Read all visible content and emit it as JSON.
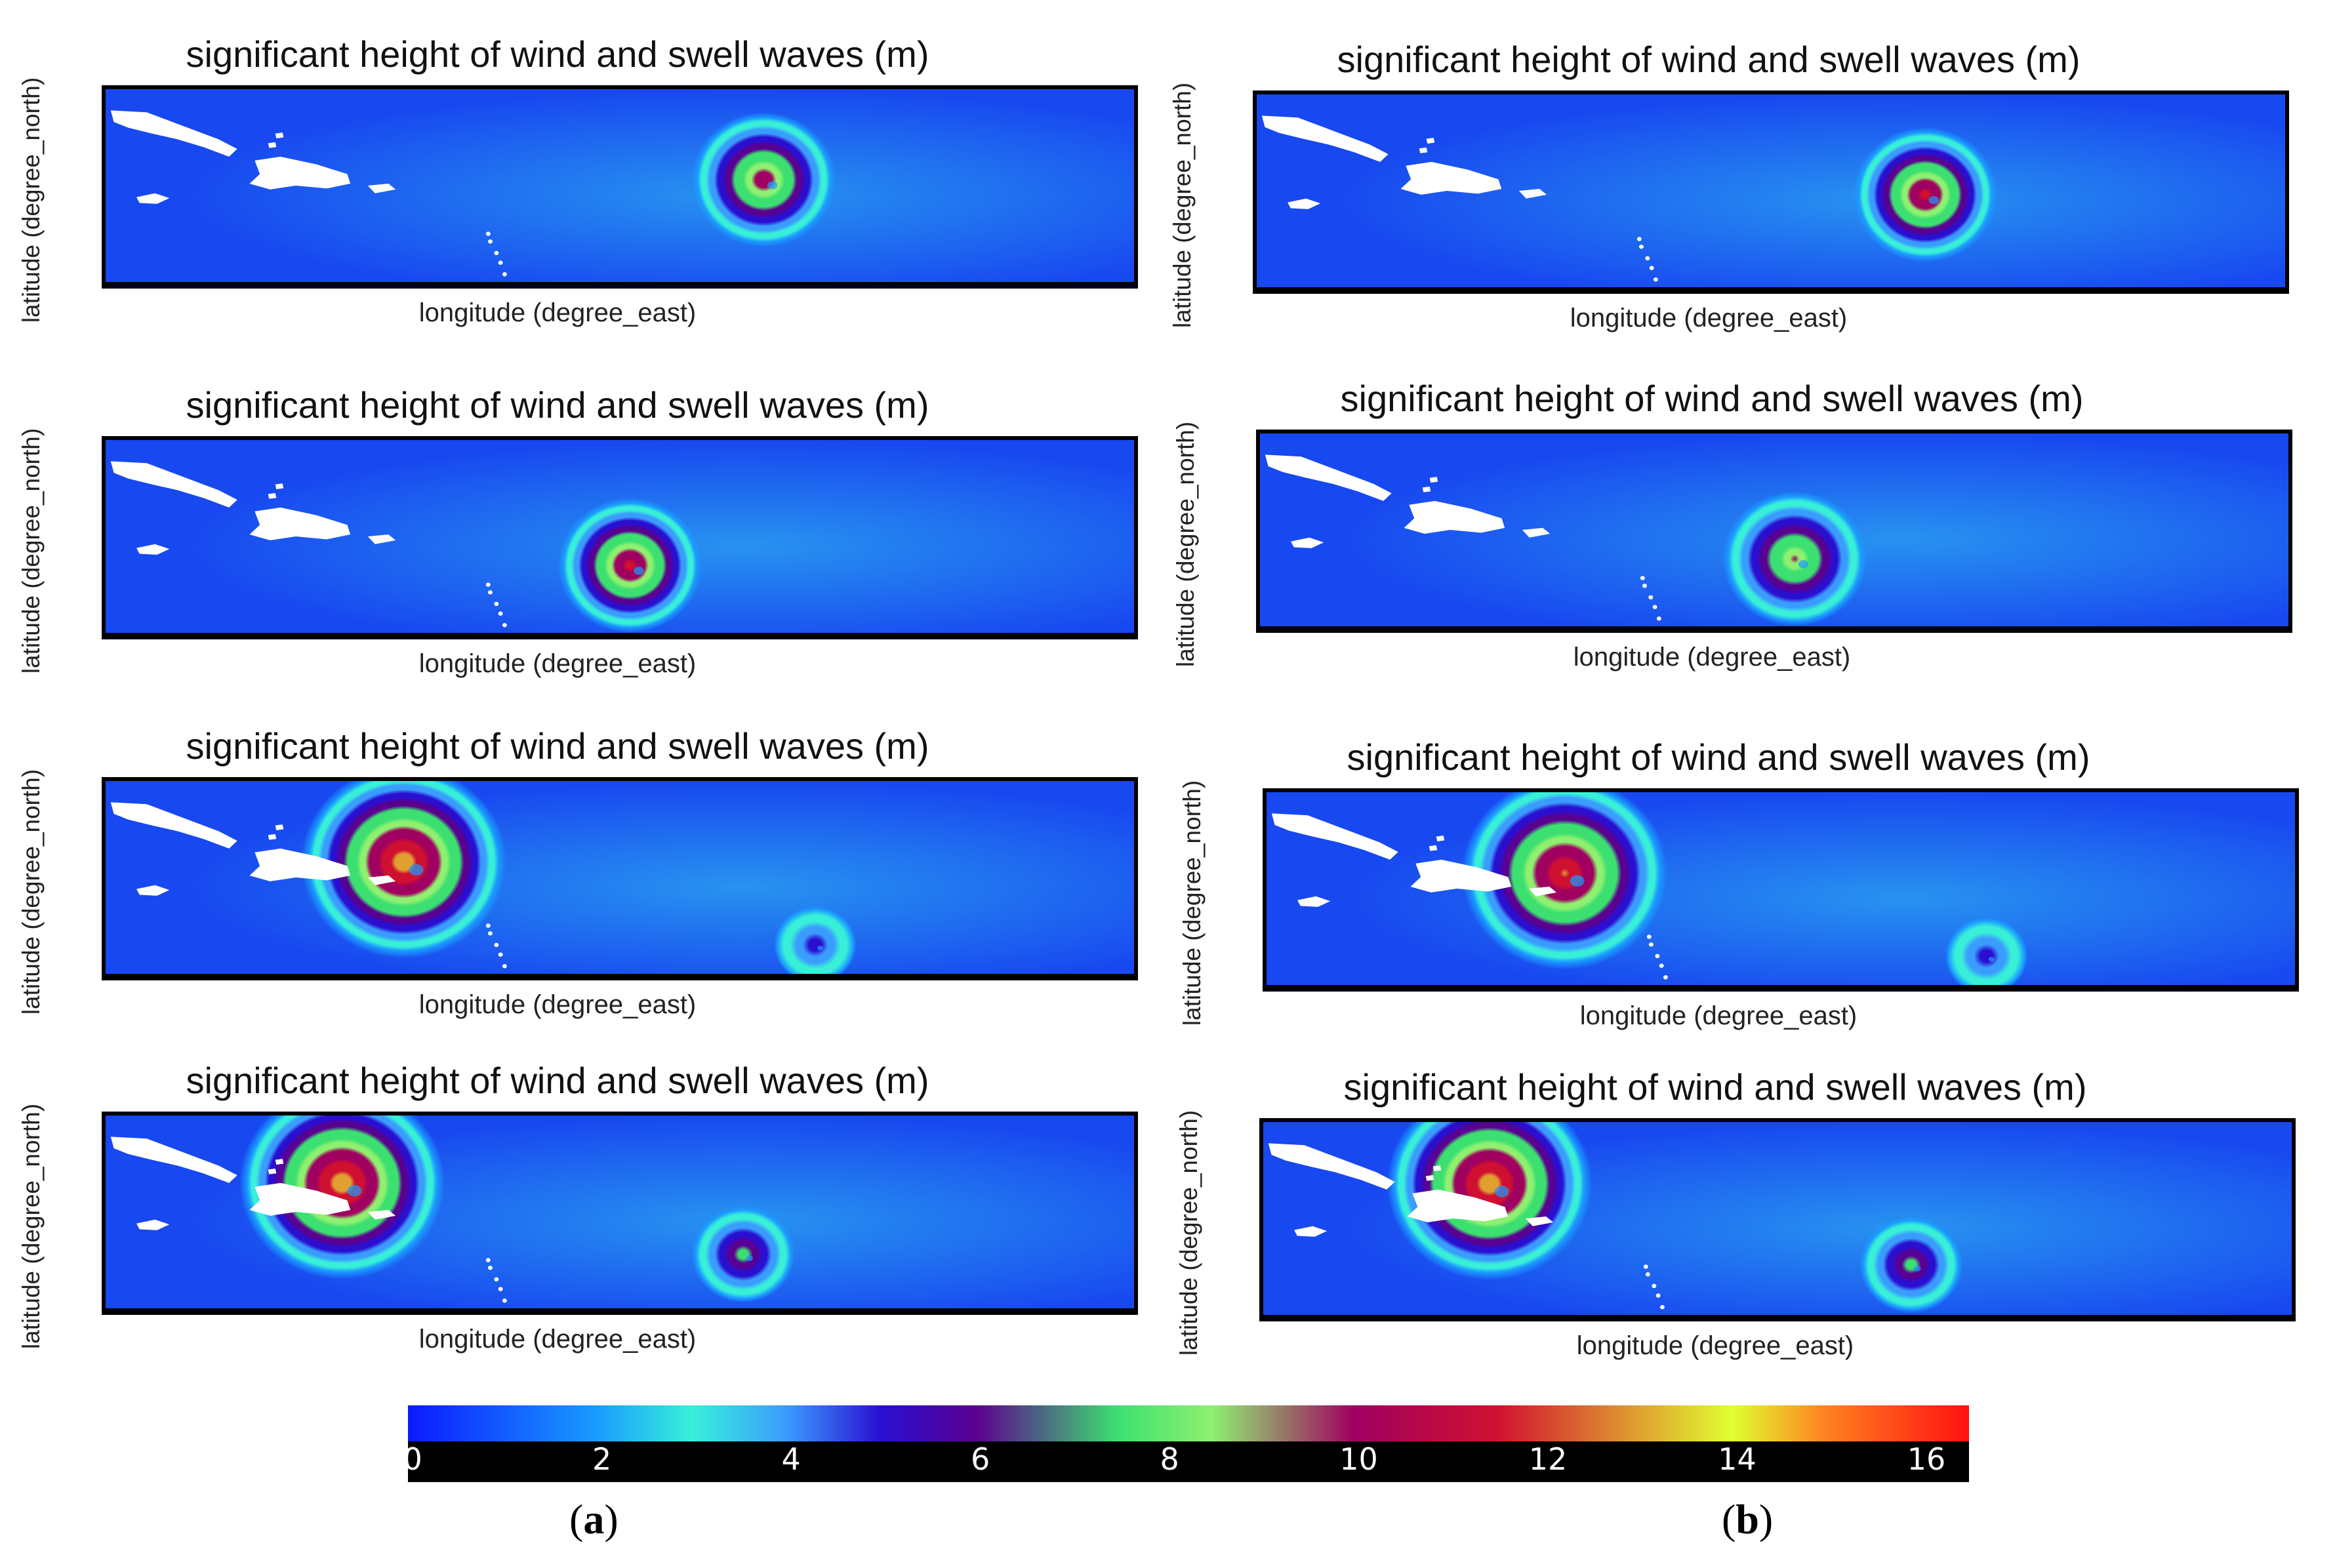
{
  "figure": {
    "panel_labels": {
      "a": "a",
      "b": "b"
    },
    "panel_label_open": "(",
    "panel_label_close": ")"
  },
  "chart_data": [
    {
      "type": "heatmap",
      "column": "a",
      "row": 1,
      "title": "significant height of wind and swell waves (m)",
      "xlabel": "longitude (degree_east)",
      "ylabel": "latitude (degree_north)",
      "storms": [
        {
          "cx": 0.64,
          "cy": 0.47,
          "peak_m": 10,
          "radius": 0.07
        }
      ]
    },
    {
      "type": "heatmap",
      "column": "a",
      "row": 2,
      "title": "significant height of wind and swell waves (m)",
      "xlabel": "longitude (degree_east)",
      "ylabel": "latitude (degree_north)",
      "storms": [
        {
          "cx": 0.51,
          "cy": 0.65,
          "peak_m": 11,
          "radius": 0.07
        }
      ]
    },
    {
      "type": "heatmap",
      "column": "a",
      "row": 3,
      "title": "significant height of wind and swell waves (m)",
      "xlabel": "longitude (degree_east)",
      "ylabel": "latitude (degree_north)",
      "storms": [
        {
          "cx": 0.29,
          "cy": 0.42,
          "peak_m": 13,
          "radius": 0.1
        },
        {
          "cx": 0.69,
          "cy": 0.85,
          "peak_m": 5,
          "radius": 0.04
        }
      ]
    },
    {
      "type": "heatmap",
      "column": "a",
      "row": 4,
      "title": "significant height of wind and swell waves (m)",
      "xlabel": "longitude (degree_east)",
      "ylabel": "latitude (degree_north)",
      "storms": [
        {
          "cx": 0.23,
          "cy": 0.35,
          "peak_m": 13,
          "radius": 0.1
        },
        {
          "cx": 0.62,
          "cy": 0.72,
          "peak_m": 7,
          "radius": 0.05
        }
      ]
    },
    {
      "type": "heatmap",
      "column": "b",
      "row": 1,
      "title": "significant height of wind and swell waves (m)",
      "xlabel": "longitude (degree_east)",
      "ylabel": "latitude (degree_north)",
      "storms": [
        {
          "cx": 0.65,
          "cy": 0.52,
          "peak_m": 11,
          "radius": 0.07
        }
      ]
    },
    {
      "type": "heatmap",
      "column": "b",
      "row": 2,
      "title": "significant height of wind and swell waves (m)",
      "xlabel": "longitude (degree_east)",
      "ylabel": "latitude (degree_north)",
      "storms": [
        {
          "cx": 0.52,
          "cy": 0.65,
          "peak_m": 9,
          "radius": 0.07
        }
      ]
    },
    {
      "type": "heatmap",
      "column": "b",
      "row": 3,
      "title": "significant height of wind and swell waves (m)",
      "xlabel": "longitude (degree_east)",
      "ylabel": "latitude (degree_north)",
      "storms": [
        {
          "cx": 0.29,
          "cy": 0.42,
          "peak_m": 12,
          "radius": 0.1
        },
        {
          "cx": 0.7,
          "cy": 0.85,
          "peak_m": 5,
          "radius": 0.04
        }
      ]
    },
    {
      "type": "heatmap",
      "column": "b",
      "row": 4,
      "title": "significant height of wind and swell waves (m)",
      "xlabel": "longitude (degree_east)",
      "ylabel": "latitude (degree_north)",
      "storms": [
        {
          "cx": 0.22,
          "cy": 0.32,
          "peak_m": 13,
          "radius": 0.1
        },
        {
          "cx": 0.63,
          "cy": 0.74,
          "peak_m": 7,
          "radius": 0.05
        }
      ]
    }
  ],
  "colorbar": {
    "label": "significant height of wind and swell waves (m)",
    "ticks": [
      "0",
      "2",
      "4",
      "6",
      "8",
      "10",
      "12",
      "14",
      "16"
    ],
    "range": [
      0,
      16.5
    ],
    "stops": [
      {
        "value": 0,
        "color": "#0a1aff"
      },
      {
        "value": 2,
        "color": "#1a9cff"
      },
      {
        "value": 3,
        "color": "#38f0d8"
      },
      {
        "value": 4,
        "color": "#3a9cff"
      },
      {
        "value": 5,
        "color": "#2a0fd0"
      },
      {
        "value": 6,
        "color": "#5a0090"
      },
      {
        "value": 7.5,
        "color": "#3ce070"
      },
      {
        "value": 8.5,
        "color": "#8ff070"
      },
      {
        "value": 10,
        "color": "#a00060"
      },
      {
        "value": 11.5,
        "color": "#d01030"
      },
      {
        "value": 13,
        "color": "#e0a030"
      },
      {
        "value": 14,
        "color": "#e0ff30"
      },
      {
        "value": 15,
        "color": "#ff8020"
      },
      {
        "value": 16.5,
        "color": "#ff1010"
      }
    ]
  },
  "colors": {
    "ocean_background": "#1848f0",
    "ocean_light": "#2aa0f0",
    "land": "#ffffff",
    "frame": "#000000"
  }
}
